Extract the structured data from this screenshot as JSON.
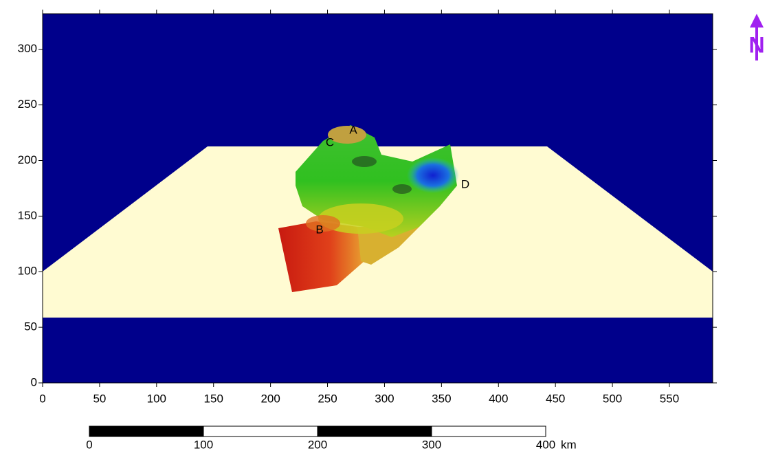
{
  "map": {
    "xlim": [
      0,
      588
    ],
    "ylim": [
      0,
      332
    ],
    "xticks": [
      0,
      50,
      100,
      150,
      200,
      250,
      300,
      350,
      400,
      450,
      500,
      550
    ],
    "yticks": [
      0,
      50,
      100,
      150,
      200,
      250,
      300
    ],
    "labels": [
      "A",
      "B",
      "C",
      "D"
    ]
  },
  "scale_bar": {
    "ticks": [
      0,
      100,
      200,
      300,
      400
    ],
    "unit": "km"
  },
  "north": "N"
}
